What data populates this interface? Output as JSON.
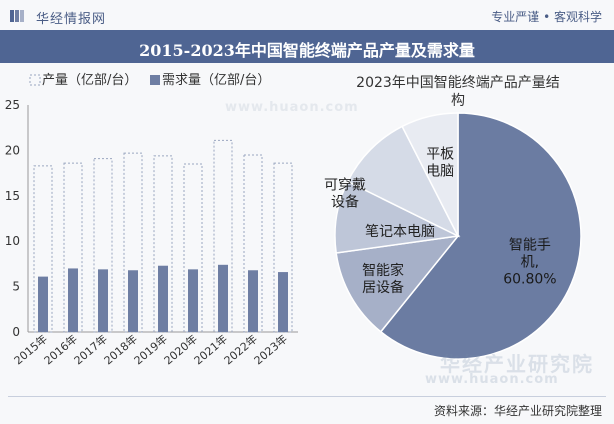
{
  "header": {
    "brand": "华经情报网",
    "tagline": "专业严谨 • 客观科学"
  },
  "title": "2015-2023年中国智能终端产品产量及需求量",
  "footer": {
    "source": "资料来源：华经产业研究院整理"
  },
  "watermark": {
    "name": "华经产业研究院",
    "url": "www.huaon.com"
  },
  "colors": {
    "title_bg": "#4f6593",
    "bar_demand": "#6e7ea3",
    "bar_production_stroke": "#9aa6c0",
    "pie_smartphone": "#6b7ca2",
    "pie_smarthome": "#a6b0c8",
    "pie_laptop": "#bec6d8",
    "pie_wearable": "#d5dbe7",
    "pie_tablet": "#e8ebf2"
  },
  "chart_data": [
    {
      "type": "bar",
      "categories": [
        "2015年",
        "2016年",
        "2017年",
        "2018年",
        "2019年",
        "2020年",
        "2021年",
        "2022年",
        "2023年"
      ],
      "series": [
        {
          "name": "产量（亿部/台）",
          "values": [
            18.3,
            18.6,
            19.1,
            19.7,
            19.4,
            18.5,
            21.1,
            19.5,
            18.6
          ]
        },
        {
          "name": "需求量（亿部/台）",
          "values": [
            6.1,
            7.0,
            6.9,
            6.8,
            7.3,
            6.9,
            7.4,
            6.8,
            6.6
          ]
        }
      ],
      "yticks": [
        "0",
        "5",
        "10",
        "15",
        "20",
        "25"
      ],
      "ylim": [
        0,
        25
      ],
      "legend": "top-left"
    },
    {
      "type": "pie",
      "title": "2023年中国智能终端产品产量结构",
      "slices": [
        {
          "label": "智能手机",
          "value": 60.8,
          "value_label": "60.80%"
        },
        {
          "label": "智能家居设备",
          "value": 12.0
        },
        {
          "label": "笔记本电脑",
          "value": 9.5
        },
        {
          "label": "可穿戴设备",
          "value": 10.2
        },
        {
          "label": "平板电脑",
          "value": 7.5
        }
      ]
    }
  ]
}
